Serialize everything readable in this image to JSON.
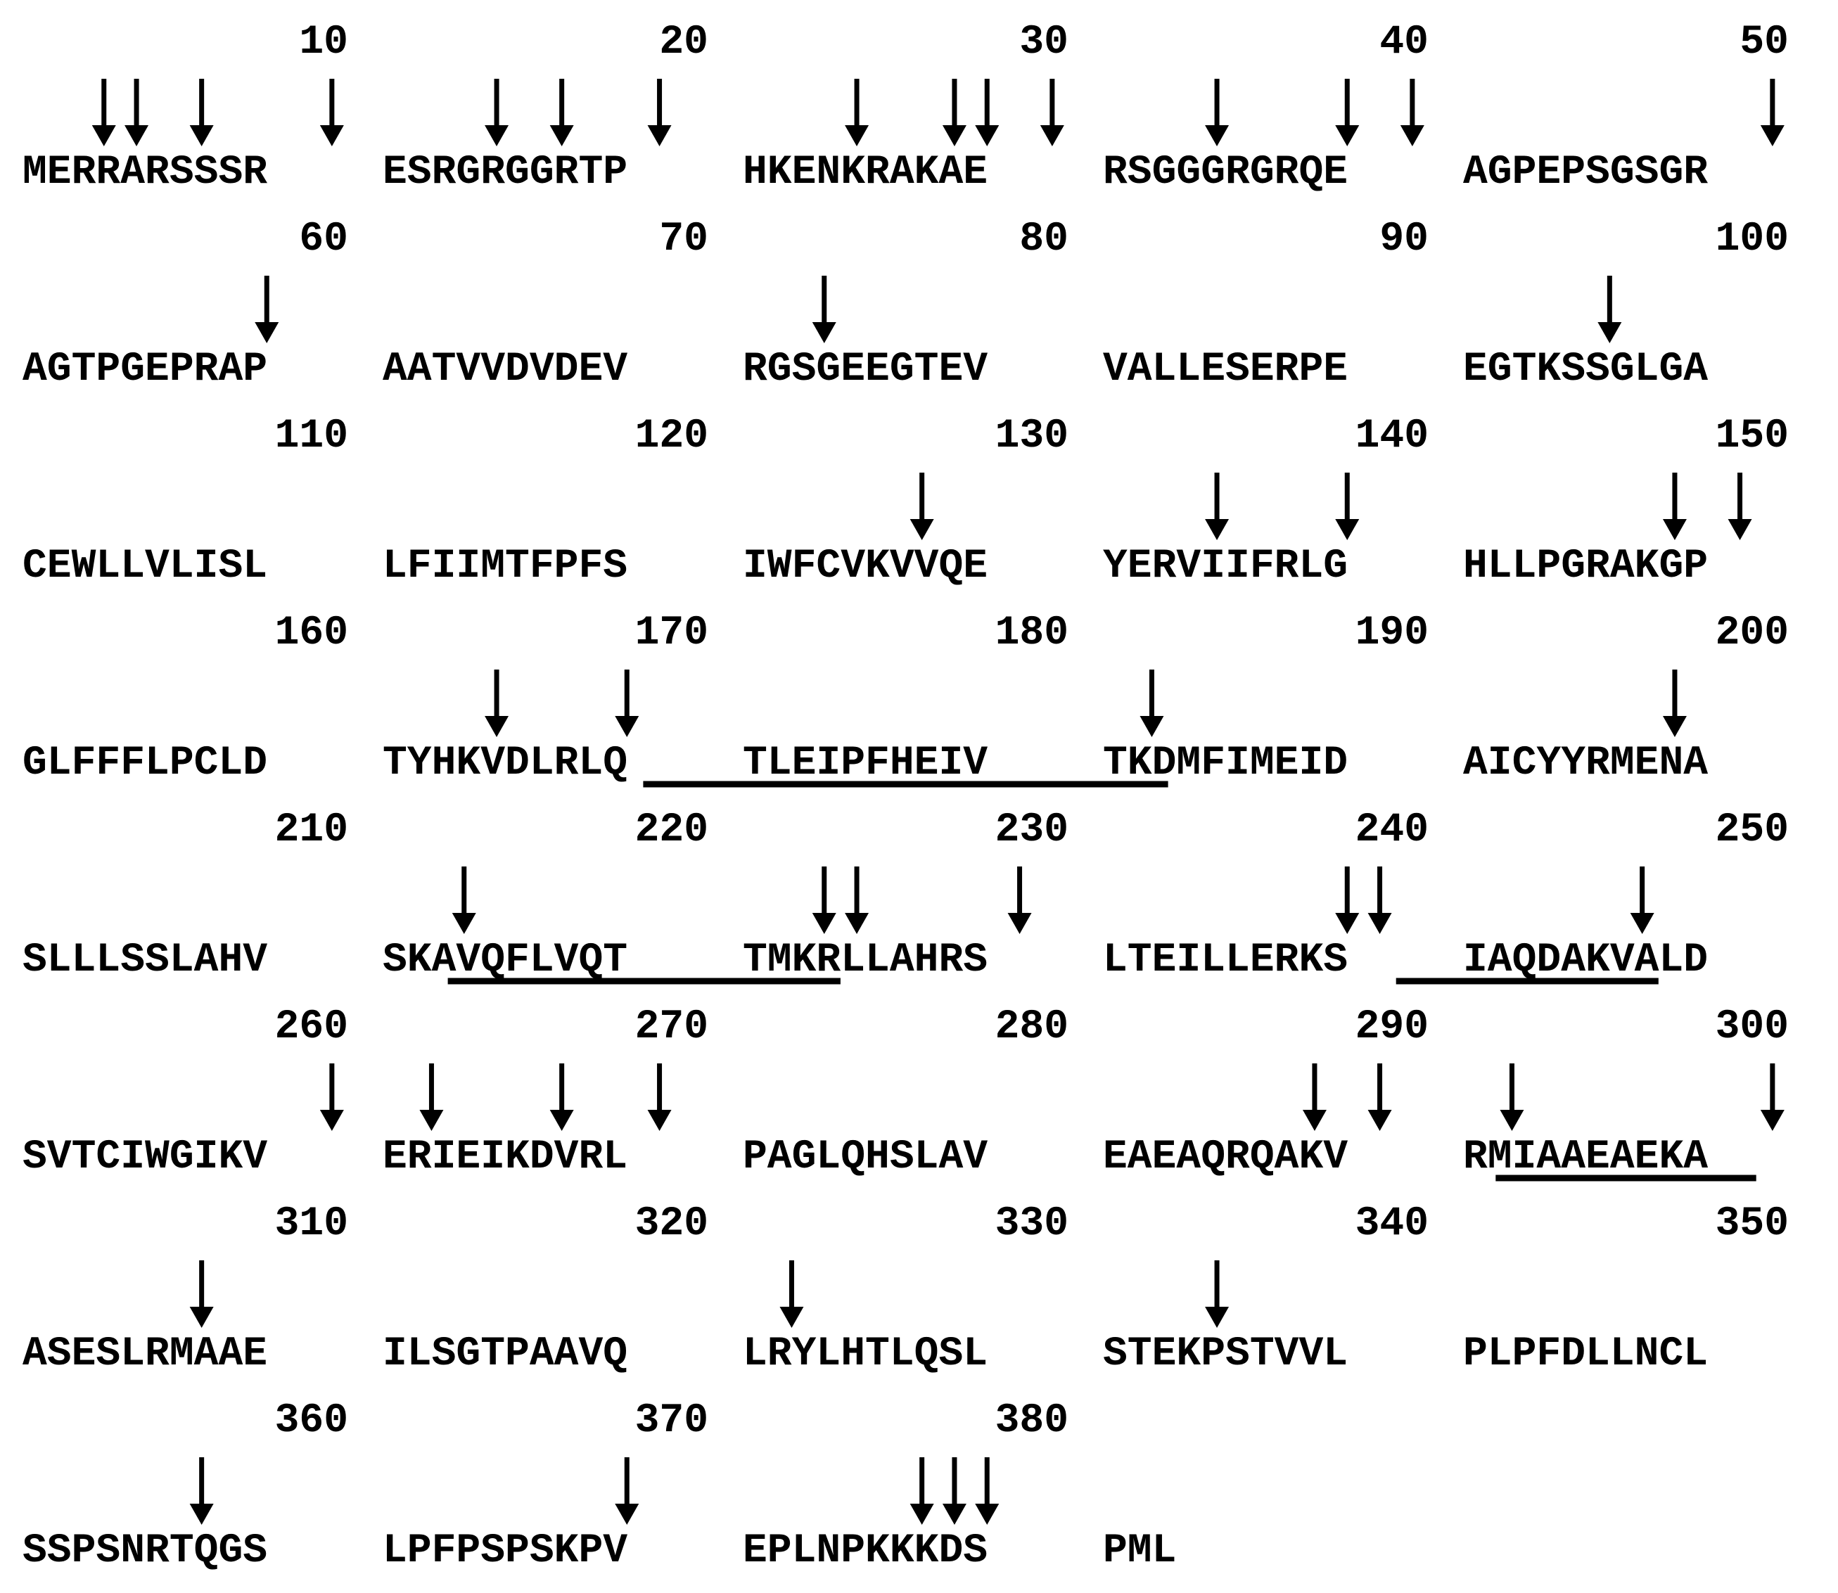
{
  "lines": [
    {
      "numbers": [
        "10",
        "20",
        "30",
        "40",
        "50"
      ],
      "blocks": [
        "MERRARSSSR",
        "ESRGRGGRTP",
        "HKENKRAKAE",
        "RSGGGRGRQE",
        "AGPEPSGSGR"
      ],
      "arrows": [
        3,
        4,
        6,
        10,
        14,
        16,
        19,
        24,
        27,
        28,
        30,
        34,
        38,
        40,
        50
      ],
      "underlines": []
    },
    {
      "numbers": [
        "60",
        "70",
        "80",
        "90",
        "100"
      ],
      "blocks": [
        "AGTPGEPRAP",
        "AATVVDVDEV",
        "RGSGEEGTEV",
        "VALLESERPE",
        "EGTKSSGLGA"
      ],
      "arrows": [
        58,
        73,
        95
      ],
      "underlines": []
    },
    {
      "numbers": [
        "110",
        "120",
        "130",
        "140",
        "150"
      ],
      "blocks": [
        "CEWLLVLISL",
        "LFIIMTFPFS",
        "IWFCVKVVQE",
        "YERVIIFRLG",
        "HLLPGRAKGP"
      ],
      "arrows": [
        126,
        134,
        138,
        147,
        149
      ],
      "underlines": []
    },
    {
      "numbers": [
        "160",
        "170",
        "180",
        "190",
        "200"
      ],
      "blocks": [
        "GLFFFLPCLD",
        "TYHKVDLRLQ",
        "TLEIPFHEIV",
        "TKDMFIMEID",
        "AICYYRMENA"
      ],
      "arrows": [
        164,
        168,
        182,
        197
      ],
      "underlines": [
        [
          169,
          182
        ]
      ]
    },
    {
      "numbers": [
        "210",
        "220",
        "230",
        "240",
        "250"
      ],
      "blocks": [
        "SLLLSSLAHV",
        "SKAVQFLVQT",
        "TMKRLLAHRS",
        "LTEILLERKS",
        "IAQDAKVALD"
      ],
      "arrows": [
        213,
        223,
        224,
        229,
        238,
        239,
        246
      ],
      "underlines": [
        [
          213,
          223
        ],
        [
          240,
          246
        ]
      ]
    },
    {
      "numbers": [
        "260",
        "270",
        "280",
        "290",
        "300"
      ],
      "blocks": [
        "SVTCIWGIKV",
        "ERIEIKDVRL",
        "PAGLQHSLAV",
        "EAEAQRQAKV",
        "RMIAAEAEKA"
      ],
      "arrows": [
        260,
        262,
        266,
        269,
        287,
        289,
        292,
        300
      ],
      "underlines": [
        [
          292,
          299
        ]
      ]
    },
    {
      "numbers": [
        "310",
        "320",
        "330",
        "340",
        "350"
      ],
      "blocks": [
        "ASESLRMAAE",
        "ILSGTPAAVQ",
        "LRYLHTLQSL",
        "STEKPSTVVL",
        "PLPFDLLNCL"
      ],
      "arrows": [
        306,
        322,
        334
      ],
      "underlines": []
    },
    {
      "numbers": [
        "360",
        "370",
        "380",
        "",
        ""
      ],
      "blocks": [
        "SSPSNRTQGS",
        "LPFPSPSKPV",
        "EPLNPKKKDS",
        "PML",
        ""
      ],
      "arrows": [
        356,
        368,
        376,
        377,
        378
      ],
      "underlines": []
    }
  ]
}
